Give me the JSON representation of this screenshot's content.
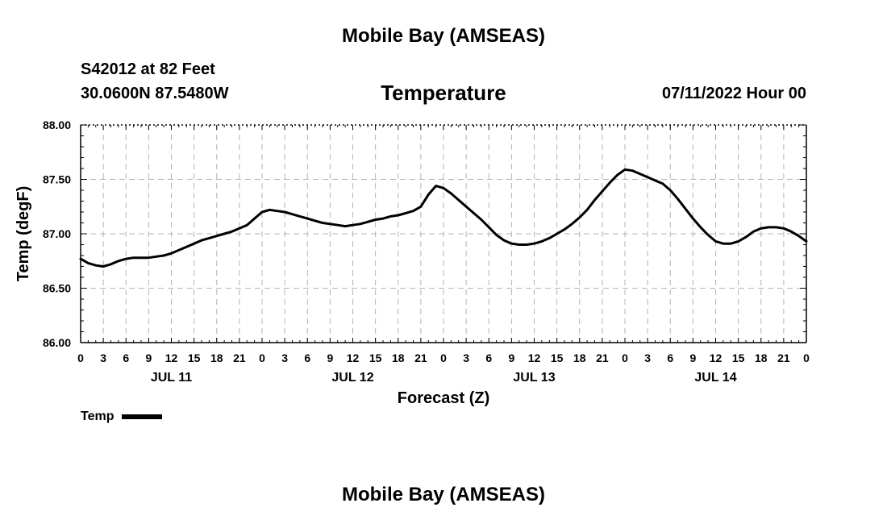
{
  "header": {
    "title": "Mobile Bay (AMSEAS)",
    "station": "S42012 at 82 Feet",
    "coords": "30.0600N  87.5480W",
    "parameter": "Temperature",
    "datetime": "07/11/2022 Hour 00"
  },
  "footer": {
    "title": "Mobile Bay (AMSEAS)"
  },
  "legend": {
    "label": "Temp",
    "color": "#000000"
  },
  "chart_data": {
    "type": "line",
    "xlabel": "Forecast (Z)",
    "ylabel": "Temp (degF)",
    "xlim_hours": [
      0,
      96
    ],
    "ylim": [
      86.0,
      88.0
    ],
    "yticks": [
      "86.00",
      "86.50",
      "87.00",
      "87.50",
      "88.00"
    ],
    "xtick_labels": [
      "0",
      "3",
      "6",
      "9",
      "12",
      "15",
      "18",
      "21",
      "0",
      "3",
      "6",
      "9",
      "12",
      "15",
      "18",
      "21",
      "0",
      "3",
      "6",
      "9",
      "12",
      "15",
      "18",
      "21",
      "0",
      "3",
      "6",
      "9",
      "12",
      "15",
      "18",
      "21",
      "0"
    ],
    "day_labels": [
      "JUL 11",
      "JUL 12",
      "JUL 13",
      "JUL 14"
    ],
    "grid": true,
    "series": [
      {
        "name": "Temp",
        "color": "#000000",
        "x": [
          0,
          1,
          2,
          3,
          4,
          5,
          6,
          7,
          8,
          9,
          10,
          11,
          12,
          13,
          14,
          15,
          16,
          17,
          18,
          19,
          20,
          21,
          22,
          23,
          24,
          25,
          26,
          27,
          28,
          29,
          30,
          31,
          32,
          33,
          34,
          35,
          36,
          37,
          38,
          39,
          40,
          41,
          42,
          43,
          44,
          45,
          46,
          47,
          48,
          49,
          50,
          51,
          52,
          53,
          54,
          55,
          56,
          57,
          58,
          59,
          60,
          61,
          62,
          63,
          64,
          65,
          66,
          67,
          68,
          69,
          70,
          71,
          72,
          73,
          74,
          75,
          76,
          77,
          78,
          79,
          80,
          81,
          82,
          83,
          84,
          85,
          86,
          87,
          88,
          89,
          90,
          91,
          92,
          93,
          94,
          95,
          96
        ],
        "values": [
          86.77,
          86.73,
          86.71,
          86.7,
          86.72,
          86.75,
          86.77,
          86.78,
          86.78,
          86.78,
          86.79,
          86.8,
          86.82,
          86.85,
          86.88,
          86.91,
          86.94,
          86.96,
          86.98,
          87.0,
          87.02,
          87.05,
          87.08,
          87.14,
          87.2,
          87.22,
          87.21,
          87.2,
          87.18,
          87.16,
          87.14,
          87.12,
          87.1,
          87.09,
          87.08,
          87.07,
          87.08,
          87.09,
          87.11,
          87.13,
          87.14,
          87.16,
          87.17,
          87.19,
          87.21,
          87.25,
          87.36,
          87.44,
          87.42,
          87.37,
          87.31,
          87.25,
          87.19,
          87.13,
          87.06,
          86.99,
          86.94,
          86.91,
          86.9,
          86.9,
          86.91,
          86.93,
          86.96,
          87.0,
          87.04,
          87.09,
          87.15,
          87.22,
          87.31,
          87.39,
          87.47,
          87.54,
          87.59,
          87.58,
          87.55,
          87.52,
          87.49,
          87.46,
          87.4,
          87.32,
          87.23,
          87.14,
          87.06,
          86.99,
          86.93,
          86.91,
          86.91,
          86.93,
          86.97,
          87.02,
          87.05,
          87.06,
          87.06,
          87.05,
          87.02,
          86.98,
          86.93
        ]
      }
    ]
  }
}
